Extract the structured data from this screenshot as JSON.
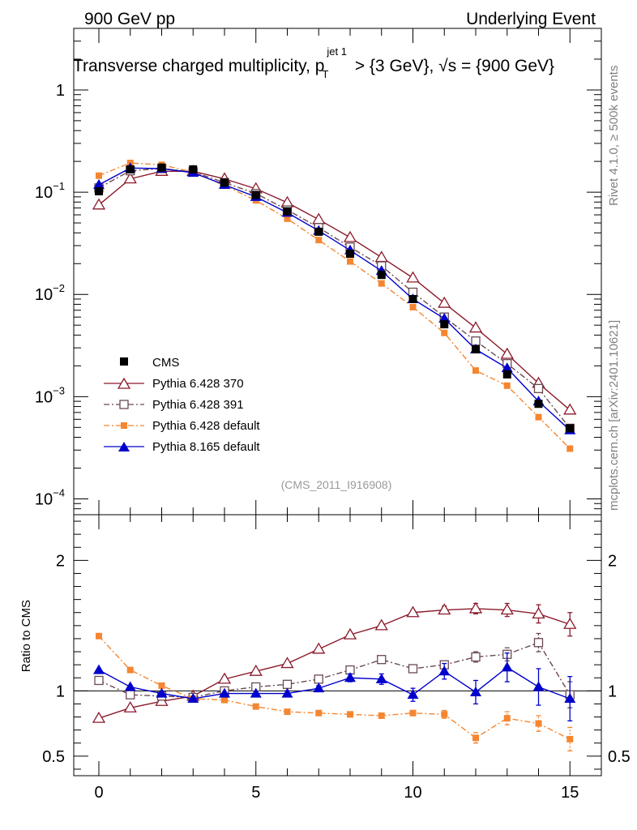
{
  "header": {
    "left": "900 GeV pp",
    "right": "Underlying Event"
  },
  "side_text": {
    "rivet": "Rivet 4.1.0, ≥ 500k events",
    "mcplots": "mcplots.cern.ch [arXiv:2401.10621]"
  },
  "chart_data": [
    {
      "type": "line",
      "title_parts": {
        "pre": "Transverse charged multiplicity, p",
        "sub": "T",
        "sup": "jet 1",
        "mid": " > {3 GeV}, ",
        "sqrt": "√",
        "s": "s",
        "post": " = {900 GeV}"
      },
      "watermark": "(CMS_2011_I916908)",
      "yscale": "log",
      "ylim": [
        7e-05,
        4
      ],
      "xlim": [
        -0.8,
        16
      ],
      "y_tick_labels": [
        {
          "value": 1,
          "base": "1",
          "exp": ""
        },
        {
          "value": 0.1,
          "base": "10",
          "exp": "−1"
        },
        {
          "value": 0.01,
          "base": "10",
          "exp": "−2"
        },
        {
          "value": 0.001,
          "base": "10",
          "exp": "−3"
        },
        {
          "value": 0.0001,
          "base": "10",
          "exp": "−4"
        }
      ],
      "legend": {
        "placement": "bottom-left"
      },
      "x": [
        0,
        1,
        2,
        3,
        4,
        5,
        6,
        7,
        8,
        9,
        10,
        11,
        12,
        13,
        14,
        15
      ],
      "series": [
        {
          "name": "CMS",
          "color": "#000000",
          "marker": "square-filled",
          "values": [
            0.102,
            0.167,
            0.174,
            0.167,
            0.124,
            0.094,
            0.065,
            0.041,
            0.025,
            0.0155,
            0.009,
            0.0051,
            0.0029,
            0.00165,
            0.00085,
            0.00049
          ]
        },
        {
          "name": "Pythia 6.428 370",
          "color": "#8b1a2b",
          "marker": "triangle-open",
          "dash": "",
          "values": [
            0.075,
            0.135,
            0.16,
            0.16,
            0.135,
            0.108,
            0.079,
            0.054,
            0.036,
            0.023,
            0.0145,
            0.0082,
            0.0047,
            0.0026,
            0.00135,
            0.00074
          ]
        },
        {
          "name": "Pythia 6.428 391",
          "color": "#6b4a52",
          "marker": "square-open",
          "dash": "7,3,2,3",
          "values": [
            0.11,
            0.162,
            0.17,
            0.158,
            0.124,
            0.097,
            0.067,
            0.045,
            0.029,
            0.019,
            0.0105,
            0.006,
            0.0035,
            0.0021,
            0.0012,
            0.00049
          ]
        },
        {
          "name": "Pythia 6.428 default",
          "color": "#f58631",
          "marker": "square-filled-small",
          "dash": "7,3,2,3",
          "values": [
            0.145,
            0.193,
            0.185,
            0.157,
            0.116,
            0.083,
            0.055,
            0.034,
            0.021,
            0.0128,
            0.0075,
            0.0042,
            0.0018,
            0.00128,
            0.00063,
            0.00031
          ]
        },
        {
          "name": "Pythia 8.165 default",
          "color": "#0000cc",
          "marker": "triangle-filled",
          "dash": "",
          "values": [
            0.118,
            0.172,
            0.17,
            0.155,
            0.118,
            0.09,
            0.063,
            0.042,
            0.027,
            0.017,
            0.009,
            0.0058,
            0.0029,
            0.0019,
            0.0009,
            0.00047
          ]
        }
      ]
    },
    {
      "type": "line",
      "ylabel": "Ratio to CMS",
      "ylim": [
        0.35,
        2.35
      ],
      "xlim": [
        -0.8,
        16
      ],
      "y_tick_labels": [
        {
          "value": 2,
          "text": "2"
        },
        {
          "value": 1,
          "text": "1"
        },
        {
          "value": 0.5,
          "text": "0.5"
        }
      ],
      "x_tick_labels": [
        {
          "value": 0,
          "text": "0"
        },
        {
          "value": 5,
          "text": "5"
        },
        {
          "value": 10,
          "text": "10"
        },
        {
          "value": 15,
          "text": "15"
        }
      ],
      "reference_line": 1,
      "x": [
        0,
        1,
        2,
        3,
        4,
        5,
        6,
        7,
        8,
        9,
        10,
        11,
        12,
        13,
        14,
        15
      ],
      "series": [
        {
          "name": "Pythia 6.428 370",
          "color": "#8b1a2b",
          "marker": "triangle-open",
          "dash": "",
          "values": [
            0.79,
            0.87,
            0.92,
            0.96,
            1.09,
            1.15,
            1.21,
            1.32,
            1.43,
            1.5,
            1.6,
            1.62,
            1.63,
            1.62,
            1.59,
            1.51
          ],
          "errors": [
            0.01,
            0.01,
            0.01,
            0.01,
            0.01,
            0.01,
            0.01,
            0.01,
            0.02,
            0.02,
            0.02,
            0.03,
            0.04,
            0.05,
            0.07,
            0.09
          ]
        },
        {
          "name": "Pythia 6.428 391",
          "color": "#6b4a52",
          "marker": "square-open",
          "dash": "7,3,2,3",
          "values": [
            1.08,
            0.97,
            0.96,
            0.95,
            1.0,
            1.03,
            1.05,
            1.09,
            1.16,
            1.24,
            1.17,
            1.2,
            1.26,
            1.28,
            1.37,
            0.97
          ],
          "errors": [
            0.01,
            0.01,
            0.01,
            0.01,
            0.01,
            0.01,
            0.01,
            0.02,
            0.02,
            0.02,
            0.03,
            0.03,
            0.04,
            0.05,
            0.07,
            0.1
          ]
        },
        {
          "name": "Pythia 6.428 default",
          "color": "#f58631",
          "marker": "square-filled-small",
          "dash": "7,3,2,3",
          "values": [
            1.42,
            1.16,
            1.04,
            0.94,
            0.93,
            0.88,
            0.84,
            0.83,
            0.82,
            0.81,
            0.83,
            0.82,
            0.64,
            0.79,
            0.75,
            0.63
          ],
          "errors": [
            0.01,
            0.01,
            0.01,
            0.01,
            0.01,
            0.01,
            0.01,
            0.01,
            0.02,
            0.02,
            0.02,
            0.03,
            0.04,
            0.05,
            0.06,
            0.09
          ]
        },
        {
          "name": "Pythia 8.165 default",
          "color": "#0000cc",
          "marker": "triangle-filled",
          "dash": "",
          "values": [
            1.16,
            1.03,
            0.98,
            0.94,
            0.98,
            0.98,
            0.98,
            1.02,
            1.1,
            1.09,
            0.97,
            1.15,
            0.99,
            1.18,
            1.03,
            0.94
          ],
          "errors": [
            0.01,
            0.01,
            0.01,
            0.01,
            0.01,
            0.01,
            0.02,
            0.02,
            0.03,
            0.04,
            0.05,
            0.06,
            0.09,
            0.11,
            0.14,
            0.17
          ]
        }
      ]
    }
  ]
}
